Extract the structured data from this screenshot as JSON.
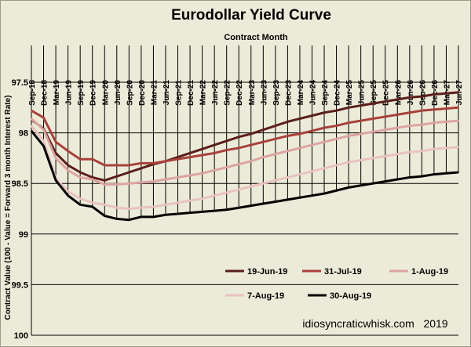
{
  "chart_data": {
    "type": "line",
    "title": "Eurodollar Yield Curve",
    "xlabel": "Contract Month",
    "ylabel": "Contract Value (100 - Value = Forward 3 month Interest Rate)",
    "annotation": "idiosyncraticwhisk.com   2019",
    "y_axis_inverted": true,
    "ylim": [
      97.5,
      100
    ],
    "yticks": [
      "97.5",
      "98",
      "98.5",
      "99",
      "99.5",
      "100"
    ],
    "categories": [
      "Sep-18",
      "Dec-18",
      "Mar-19",
      "Jun-19",
      "Sep-19",
      "Dec-19",
      "Mar-20",
      "Jun-20",
      "Sep-20",
      "Dec-20",
      "Mar-21",
      "Jun-21",
      "Sep-21",
      "Dec-21",
      "Mar-22",
      "Jun-22",
      "Sep-22",
      "Dec-22",
      "Mar-23",
      "Jun-23",
      "Sep-23",
      "Dec-23",
      "Mar-24",
      "Jun-24",
      "Sep-24",
      "Dec-24",
      "Mar-25",
      "Jun-25",
      "Sep-25",
      "Dec-25",
      "Mar-26",
      "Jun-26",
      "Sep-26",
      "Dec-26",
      "Mar-27",
      "Jun-27"
    ],
    "series": [
      {
        "name": "19-Jun-19",
        "color": "#5a1f1c",
        "values": [
          97.87,
          97.96,
          98.2,
          98.32,
          98.39,
          98.44,
          98.47,
          98.43,
          98.39,
          98.35,
          98.31,
          98.28,
          98.24,
          98.2,
          98.16,
          98.12,
          98.08,
          98.04,
          98.01,
          97.97,
          97.93,
          97.89,
          97.86,
          97.83,
          97.8,
          97.78,
          97.75,
          97.73,
          97.71,
          97.69,
          97.67,
          97.65,
          97.64,
          97.62,
          97.61,
          97.6
        ]
      },
      {
        "name": "31-Jul-19",
        "color": "#a8413b",
        "values": [
          97.78,
          97.85,
          98.09,
          98.18,
          98.26,
          98.26,
          98.32,
          98.32,
          98.32,
          98.3,
          98.3,
          98.28,
          98.26,
          98.24,
          98.22,
          98.2,
          98.17,
          98.15,
          98.12,
          98.09,
          98.06,
          98.03,
          98.01,
          97.98,
          97.95,
          97.93,
          97.9,
          97.88,
          97.86,
          97.84,
          97.82,
          97.8,
          97.78,
          97.77,
          97.76,
          97.75
        ]
      },
      {
        "name": "1-Aug-19",
        "color": "#dca4a0",
        "values": [
          97.86,
          97.97,
          98.25,
          98.37,
          98.44,
          98.46,
          98.51,
          98.51,
          98.5,
          98.49,
          98.48,
          98.46,
          98.44,
          98.42,
          98.4,
          98.37,
          98.34,
          98.31,
          98.28,
          98.24,
          98.21,
          98.18,
          98.15,
          98.12,
          98.09,
          98.06,
          98.03,
          98.01,
          97.99,
          97.97,
          97.95,
          97.93,
          97.92,
          97.9,
          97.89,
          97.88
        ]
      },
      {
        "name": "7-Aug-19",
        "color": "#e9c2c0",
        "values": [
          97.93,
          98.08,
          98.45,
          98.58,
          98.65,
          98.69,
          98.71,
          98.74,
          98.75,
          98.74,
          98.73,
          98.71,
          98.69,
          98.67,
          98.65,
          98.62,
          98.59,
          98.56,
          98.53,
          98.5,
          98.47,
          98.44,
          98.41,
          98.38,
          98.35,
          98.32,
          98.29,
          98.27,
          98.25,
          98.23,
          98.21,
          98.19,
          98.18,
          98.16,
          98.15,
          98.14
        ]
      },
      {
        "name": "30-Aug-19",
        "color": "#000000",
        "values": [
          97.98,
          98.13,
          98.47,
          98.62,
          98.71,
          98.73,
          98.82,
          98.85,
          98.86,
          98.83,
          98.83,
          98.81,
          98.8,
          98.79,
          98.78,
          98.77,
          98.76,
          98.74,
          98.72,
          98.7,
          98.68,
          98.66,
          98.64,
          98.62,
          98.6,
          98.57,
          98.54,
          98.52,
          98.5,
          98.48,
          98.46,
          98.44,
          98.43,
          98.41,
          98.4,
          98.39
        ]
      }
    ],
    "legend": {
      "placement": "inside-bottom",
      "rows": [
        [
          "19-Jun-19",
          "31-Jul-19",
          "1-Aug-19"
        ],
        [
          "7-Aug-19",
          "30-Aug-19"
        ]
      ]
    }
  }
}
